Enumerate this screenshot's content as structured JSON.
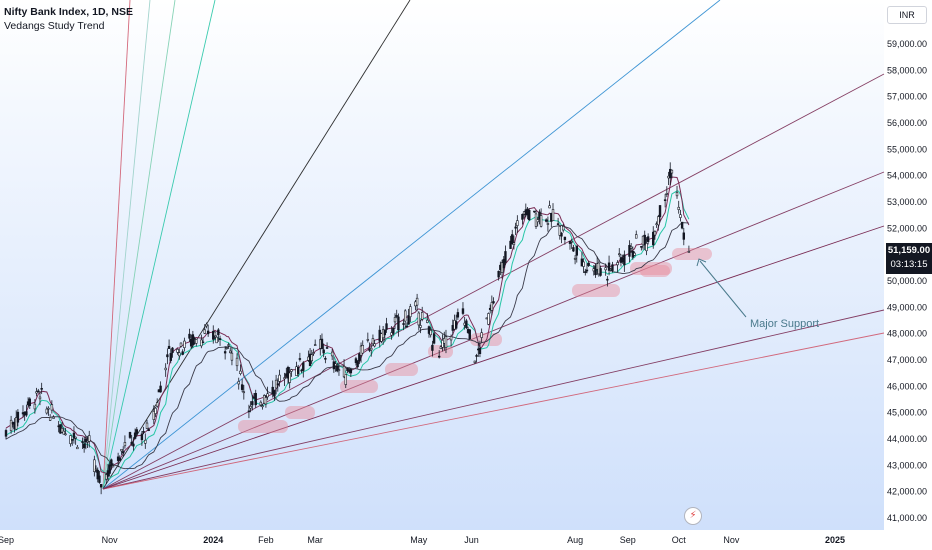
{
  "legend": {
    "title": "Nifty Bank Index, 1D, NSE",
    "indicator": "Vedangs Study Trend"
  },
  "currency": "INR",
  "last_price": {
    "value": "51,159.00",
    "countdown": "03:13:15"
  },
  "annotation": "Major Support",
  "event_icon": "flash-icon",
  "colors": {
    "up": "#131722",
    "down": "#131722",
    "trend_teal": "#26c6a6",
    "trend_purple": "#7a2c54",
    "fan_red": "#d05a6e",
    "fan_blue": "#2c8bd0",
    "fan_black": "#1a1a1a",
    "highlight": "#e88a9a"
  },
  "chart_data": {
    "type": "candlestick",
    "symbol": "Nifty Bank Index",
    "interval": "1D",
    "exchange": "NSE",
    "y_ticks": [
      "59,000.00",
      "58,000.00",
      "57,000.00",
      "56,000.00",
      "55,000.00",
      "54,000.00",
      "53,000.00",
      "52,000.00",
      "51,000.00",
      "50,000.00",
      "49,000.00",
      "48,000.00",
      "47,000.00",
      "46,000.00",
      "45,000.00",
      "44,000.00",
      "43,000.00",
      "42,000.00",
      "41,000.00"
    ],
    "x_ticks": [
      "Sep",
      "Nov",
      "2024",
      "Feb",
      "Mar",
      "May",
      "Jun",
      "Aug",
      "Sep",
      "Oct",
      "Nov",
      "2025"
    ],
    "ylim": [
      40600,
      59700
    ],
    "close_path": [
      {
        "date": "2023-09-01",
        "close": 44300
      },
      {
        "date": "2023-09-20",
        "close": 45700
      },
      {
        "date": "2023-10-01",
        "close": 44600
      },
      {
        "date": "2023-10-20",
        "close": 43700
      },
      {
        "date": "2023-10-26",
        "close": 42300
      },
      {
        "date": "2023-11-10",
        "close": 43800
      },
      {
        "date": "2023-11-25",
        "close": 44300
      },
      {
        "date": "2023-12-05",
        "close": 47200
      },
      {
        "date": "2023-12-20",
        "close": 47800
      },
      {
        "date": "2024-01-01",
        "close": 48000
      },
      {
        "date": "2024-01-10",
        "close": 47600
      },
      {
        "date": "2024-01-23",
        "close": 45200
      },
      {
        "date": "2024-02-05",
        "close": 45900
      },
      {
        "date": "2024-02-20",
        "close": 46800
      },
      {
        "date": "2024-03-05",
        "close": 47500
      },
      {
        "date": "2024-03-18",
        "close": 46400
      },
      {
        "date": "2024-04-01",
        "close": 47500
      },
      {
        "date": "2024-04-15",
        "close": 48200
      },
      {
        "date": "2024-04-30",
        "close": 48900
      },
      {
        "date": "2024-05-13",
        "close": 47300
      },
      {
        "date": "2024-05-27",
        "close": 48800
      },
      {
        "date": "2024-06-04",
        "close": 47000
      },
      {
        "date": "2024-06-15",
        "close": 49700
      },
      {
        "date": "2024-07-01",
        "close": 52600
      },
      {
        "date": "2024-07-20",
        "close": 52400
      },
      {
        "date": "2024-08-05",
        "close": 50700
      },
      {
        "date": "2024-08-20",
        "close": 50400
      },
      {
        "date": "2024-09-05",
        "close": 51300
      },
      {
        "date": "2024-09-15",
        "close": 51600
      },
      {
        "date": "2024-09-27",
        "close": 54300
      },
      {
        "date": "2024-10-03",
        "close": 52000
      },
      {
        "date": "2024-10-07",
        "close": 51159
      }
    ],
    "support_zones": 10
  }
}
